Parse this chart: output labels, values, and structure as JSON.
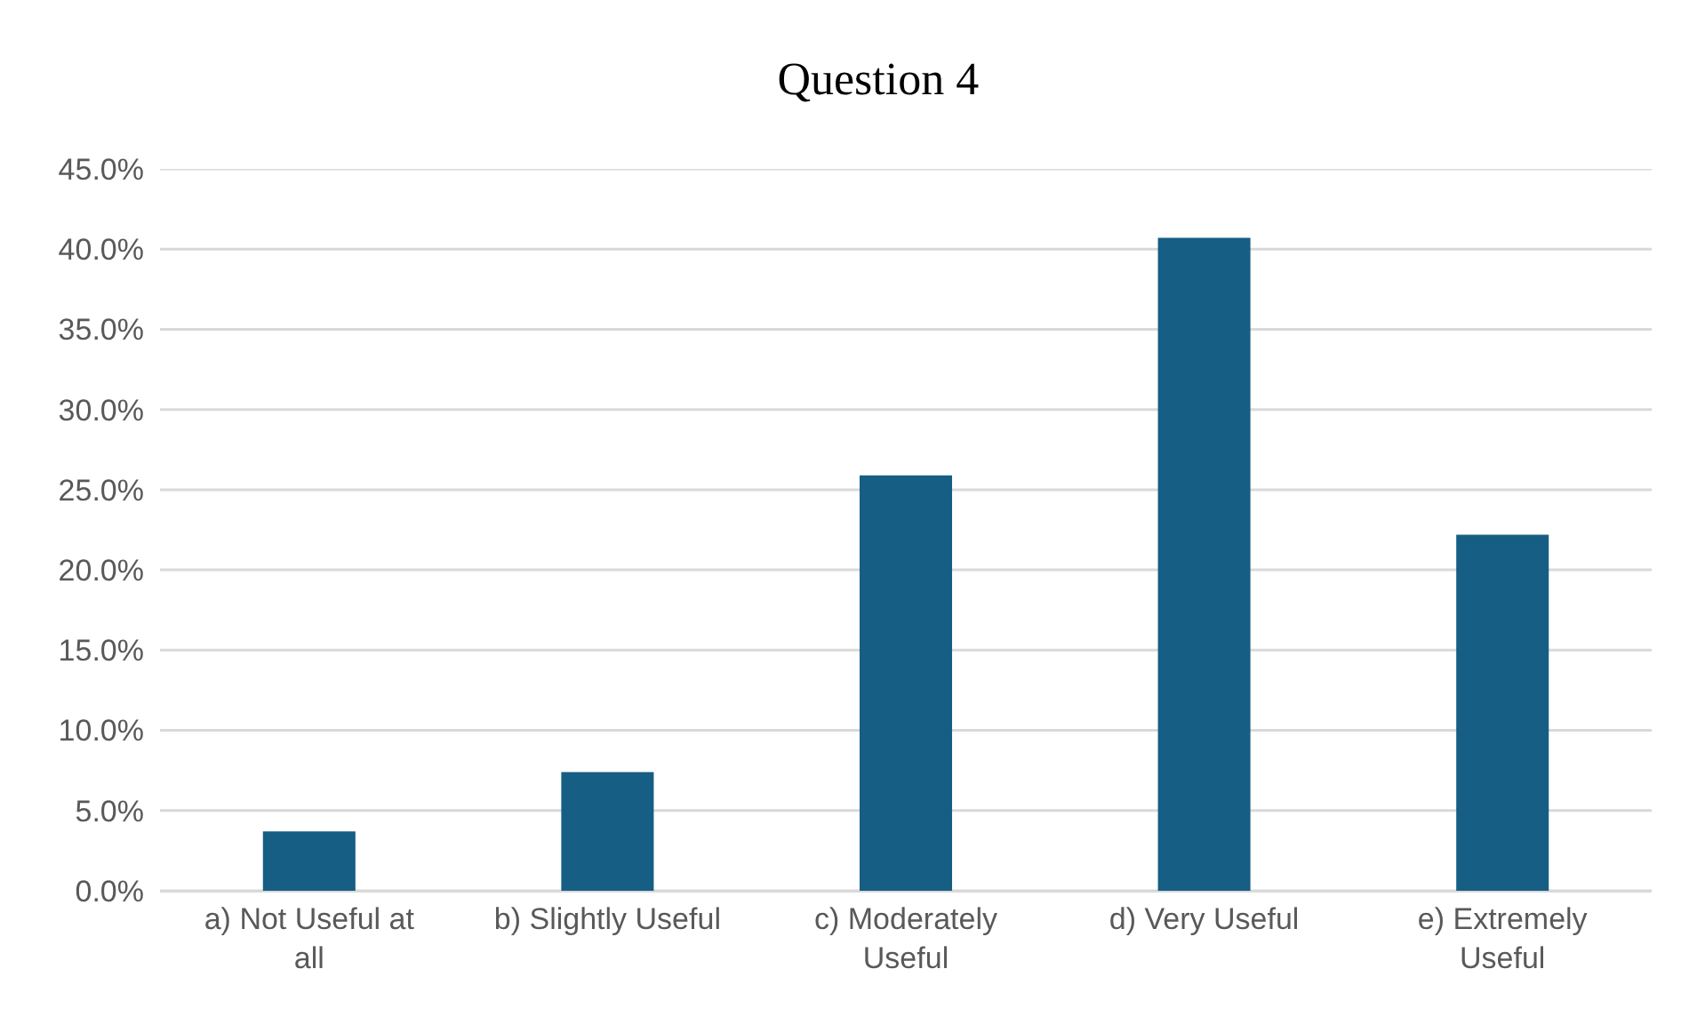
{
  "chart_data": {
    "type": "bar",
    "title": "Question 4",
    "categories": [
      "a) Not Useful at all",
      "b) Slightly Useful",
      "c) Moderately Useful",
      "d) Very Useful",
      "e) Extremely Useful"
    ],
    "values": [
      3.7,
      7.4,
      25.9,
      40.7,
      22.2
    ],
    "color": "#165e83",
    "ylim": [
      0,
      45
    ],
    "yticks": [
      {
        "value": 0,
        "label": "0.0%"
      },
      {
        "value": 5,
        "label": "5.0%"
      },
      {
        "value": 10,
        "label": "10.0%"
      },
      {
        "value": 15,
        "label": "15.0%"
      },
      {
        "value": 20,
        "label": "20.0%"
      },
      {
        "value": 25,
        "label": "25.0%"
      },
      {
        "value": 30,
        "label": "30.0%"
      },
      {
        "value": 35,
        "label": "35.0%"
      },
      {
        "value": 40,
        "label": "40.0%"
      },
      {
        "value": 45,
        "label": "45.0%"
      }
    ],
    "grid": "y"
  }
}
